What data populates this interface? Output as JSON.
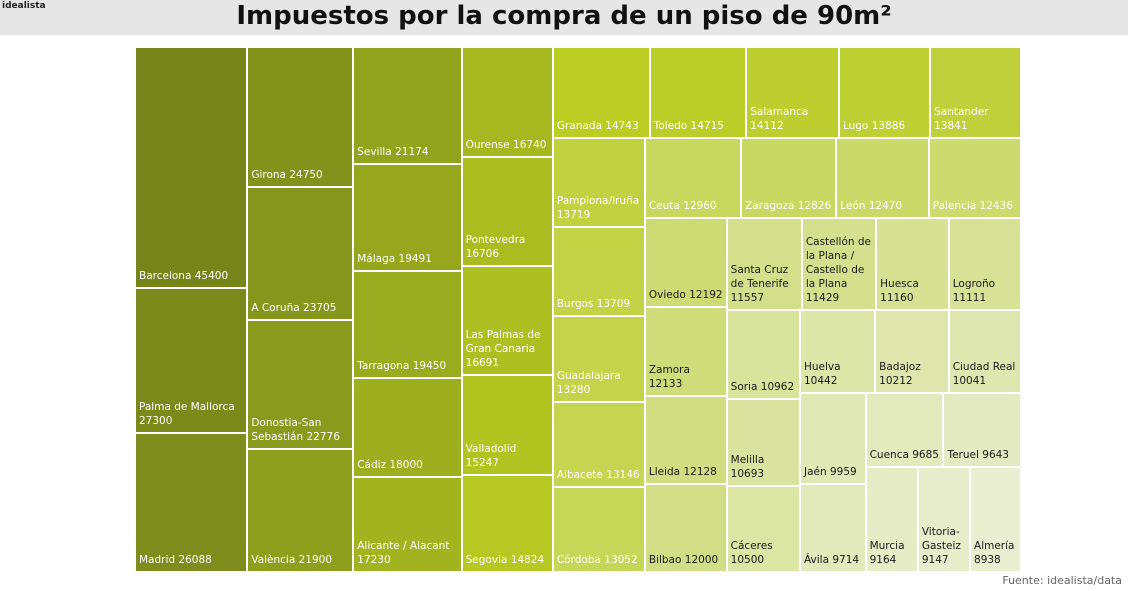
{
  "brand": "idealista",
  "chart_data": {
    "type": "treemap",
    "title": "Impuestos por la compra de un piso de 90m²",
    "source": "Fuente: idealista/data",
    "colors": [
      "#76851a",
      "#b9cd22",
      "#d2de86",
      "#e8eecf"
    ],
    "categories": [
      "Barcelona",
      "Palma de Mallorca",
      "Madrid",
      "Girona",
      "A Coruña",
      "Donostia-San Sebastián",
      "València",
      "Sevilla",
      "Málaga",
      "Tarragona",
      "Cádiz",
      "Alicante / Alacant",
      "Ourense",
      "Pontevedra",
      "Las Palmas de Gran Canaria",
      "Valladolid",
      "Segovia",
      "Granada",
      "Toledo",
      "Salamanca",
      "Lugo",
      "Santander",
      "Pamplona/Iruña",
      "Burgos",
      "Guadalajara",
      "Albacete",
      "Córdoba",
      "Ceuta",
      "Zaragoza",
      "León",
      "Palencia",
      "Oviedo",
      "Zamora",
      "Lleida",
      "Bilbao",
      "Santa Cruz de Tenerife",
      "Castellón de la Plana / Castello de la Plana",
      "Huesca",
      "Logroño",
      "Soria",
      "Melilla",
      "Cáceres",
      "Huelva",
      "Badajoz",
      "Ciudad Real",
      "Jaén",
      "Ávila",
      "Cuenca",
      "Teruel",
      "Murcia",
      "Vitoria-Gasteiz",
      "Almería"
    ],
    "values": [
      45400,
      27300,
      26088,
      24750,
      23705,
      22776,
      21900,
      21174,
      19491,
      19450,
      18000,
      17230,
      16740,
      16706,
      16691,
      15247,
      14824,
      14743,
      14715,
      14112,
      13886,
      13841,
      13719,
      13709,
      13280,
      13146,
      13052,
      12960,
      12826,
      12470,
      12436,
      12192,
      12133,
      12128,
      12000,
      11557,
      11429,
      11160,
      11111,
      10962,
      10693,
      10500,
      10442,
      10212,
      10041,
      9959,
      9714,
      9685,
      9643,
      9164,
      9147,
      8938
    ]
  }
}
